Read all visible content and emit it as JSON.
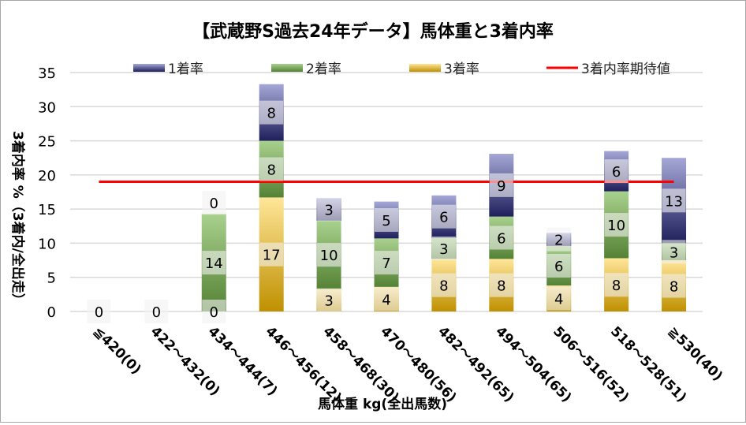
{
  "chart_data": {
    "type": "bar",
    "stacked": true,
    "title": "【武蔵野S過去24年データ】馬体重と3着内率",
    "xlabel": "馬体重 kg(全出馬数)",
    "ylabel": "3着内率 %（3着内/全出走）",
    "ylim": [
      0,
      35
    ],
    "yticks": [
      0,
      5,
      10,
      15,
      20,
      25,
      30,
      35
    ],
    "grid": true,
    "legend_position": "top",
    "categories": [
      "≦420(0)",
      "422～432(0)",
      "434～444(7)",
      "446～456(12)",
      "458～468(30)",
      "470～480(56)",
      "482～492(65)",
      "494～504(65)",
      "506～516(52)",
      "518～528(51)",
      "≧530(40)"
    ],
    "series": [
      {
        "name": "3着率",
        "values": [
          0,
          0,
          0,
          16.7,
          3.3,
          3.6,
          7.7,
          7.7,
          3.8,
          7.8,
          7.5
        ],
        "labels": [
          "0",
          "0",
          "0",
          "17",
          "3",
          "4",
          "8",
          "8",
          "4",
          "8",
          "8"
        ],
        "color_top": "#ffe699",
        "color_bottom": "#bf9000"
      },
      {
        "name": "2着率",
        "values": [
          0,
          0,
          14.3,
          8.3,
          10.0,
          7.1,
          3.1,
          6.2,
          5.8,
          9.8,
          2.5
        ],
        "labels": [
          "",
          "",
          "14",
          "8",
          "10",
          "7",
          "3",
          "6",
          "6",
          "10",
          "3"
        ],
        "color_top": "#a9d18e",
        "color_bottom": "#548235"
      },
      {
        "name": "1着率",
        "values": [
          0,
          0,
          0,
          8.3,
          3.3,
          5.4,
          6.2,
          9.2,
          1.9,
          5.9,
          12.5
        ],
        "labels": [
          "",
          "",
          "0",
          "8",
          "3",
          "5",
          "6",
          "9",
          "2",
          "6",
          "13"
        ],
        "color_top": "#a5a8d6",
        "color_bottom": "#1f1f5c"
      }
    ],
    "reference_line": {
      "name": "3着内率期待値",
      "value": 19.0,
      "color": "#ff0000"
    },
    "legend_order": [
      "1着率",
      "2着率",
      "3着率",
      "3着内率期待値"
    ]
  }
}
